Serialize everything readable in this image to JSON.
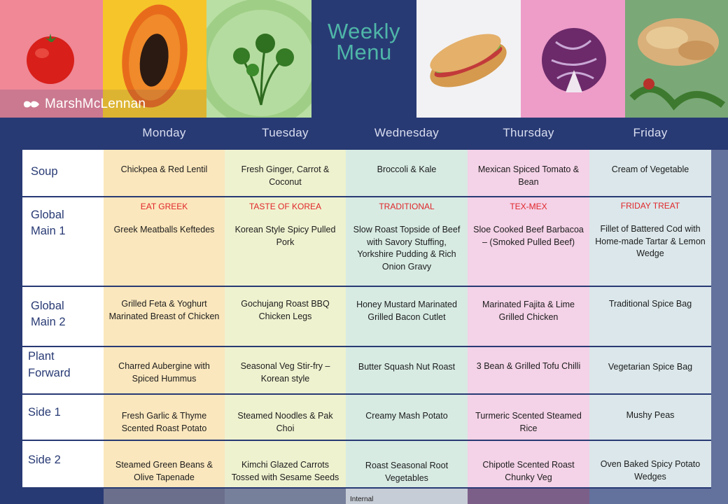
{
  "header": {
    "title_line1": "Weekly",
    "title_line2": "Menu",
    "brand": "MarshMcLennan"
  },
  "days": [
    "Monday",
    "Tuesday",
    "Wednesday",
    "Thursday",
    "Friday"
  ],
  "rows": [
    {
      "label": [
        "Soup",
        ""
      ],
      "cells": [
        {
          "theme": "",
          "text": "Chickpea & Red Lentil"
        },
        {
          "theme": "",
          "text": "Fresh Ginger, Carrot & Coconut"
        },
        {
          "theme": "",
          "text": "Broccoli & Kale"
        },
        {
          "theme": "",
          "text": "Mexican Spiced Tomato & Bean"
        },
        {
          "theme": "",
          "text": "Cream of Vegetable"
        }
      ]
    },
    {
      "label": [
        "Global",
        "Main 1"
      ],
      "cells": [
        {
          "theme": "EAT GREEK",
          "text": "Greek Meatballs Keftedes"
        },
        {
          "theme": "TASTE OF KOREA",
          "text": "Korean Style Spicy Pulled Pork"
        },
        {
          "theme": "TRADITIONAL",
          "text": "Slow Roast Topside of Beef with Savory Stuffing, Yorkshire Pudding & Rich Onion Gravy"
        },
        {
          "theme": "TEX-MEX",
          "text": "Sloe Cooked Beef Barbacoa – (Smoked Pulled Beef)"
        },
        {
          "theme": "FRIDAY TREAT",
          "text": "Fillet of Battered Cod with Home-made Tartar & Lemon Wedge"
        }
      ]
    },
    {
      "label": [
        "Global",
        "Main 2"
      ],
      "cells": [
        {
          "theme": "",
          "text": "Grilled Feta & Yoghurt Marinated Breast of Chicken"
        },
        {
          "theme": "",
          "text": "Gochujang Roast BBQ Chicken Legs"
        },
        {
          "theme": "",
          "text": "Honey Mustard Marinated Grilled Bacon Cutlet"
        },
        {
          "theme": "",
          "text": "Marinated Fajita & Lime Grilled Chicken"
        },
        {
          "theme": "",
          "text": "Traditional Spice Bag"
        }
      ]
    },
    {
      "label": [
        "Plant",
        "Forward"
      ],
      "cells": [
        {
          "theme": "",
          "text": "Charred Aubergine with Spiced Hummus"
        },
        {
          "theme": "",
          "text": "Seasonal Veg Stir-fry – Korean style"
        },
        {
          "theme": "",
          "text": "Butter Squash Nut Roast"
        },
        {
          "theme": "",
          "text": "3 Bean & Grilled Tofu Chilli"
        },
        {
          "theme": "",
          "text": "Vegetarian Spice Bag"
        }
      ]
    },
    {
      "label": [
        "Side 1",
        ""
      ],
      "cells": [
        {
          "theme": "",
          "text": "Fresh Garlic & Thyme Scented Roast Potato"
        },
        {
          "theme": "",
          "text": "Steamed Noodles & Pak Choi"
        },
        {
          "theme": "",
          "text": "Creamy Mash Potato"
        },
        {
          "theme": "",
          "text": "Turmeric Scented Steamed Rice"
        },
        {
          "theme": "",
          "text": "Mushy Peas"
        }
      ]
    },
    {
      "label": [
        "Side 2",
        ""
      ],
      "cells": [
        {
          "theme": "",
          "text": "Steamed Green Beans & Olive Tapenade"
        },
        {
          "theme": "",
          "text": "Kimchi Glazed Carrots Tossed with Sesame Seeds"
        },
        {
          "theme": "",
          "text": "Roast Seasonal Root Vegetables"
        },
        {
          "theme": "",
          "text": "Chipotle Scented Roast Chunky Veg"
        },
        {
          "theme": "",
          "text": "Oven Baked Spicy Potato Wedges"
        }
      ]
    }
  ],
  "footer": {
    "classification": "Internal"
  },
  "photos": [
    "tomato",
    "papaya",
    "green-soup",
    "sandwich",
    "red-cabbage",
    "chicken-salad"
  ],
  "colors": {
    "navy": "#283a74",
    "title_teal": "#4fb6a8",
    "theme_red": "#e0262a",
    "monday": "#fbe7bd",
    "tuesday": "#eff2cf",
    "wednesday": "#d7ebe3",
    "thursday": "#f4d2e7",
    "friday": "#dbe7ea"
  }
}
